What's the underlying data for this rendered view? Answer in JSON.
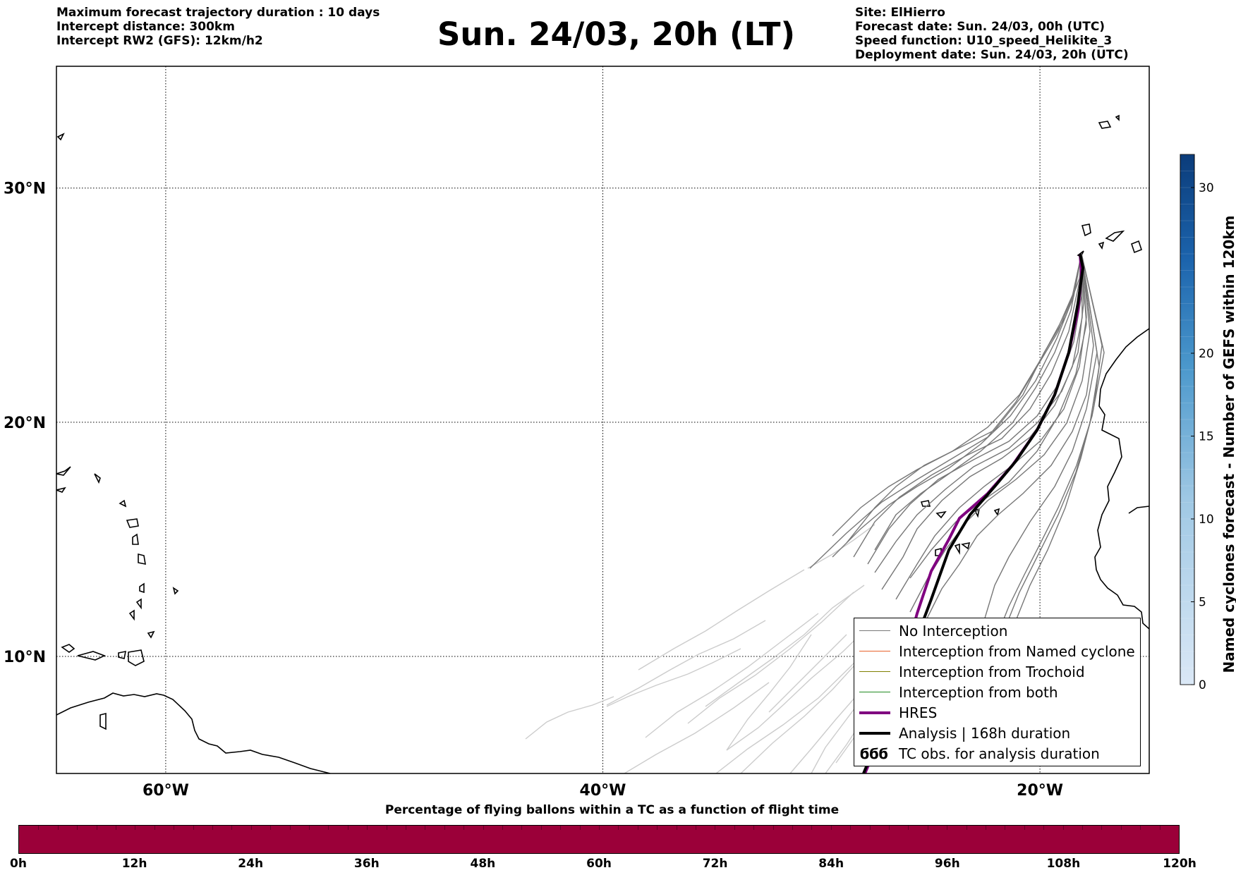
{
  "header": {
    "left_lines": [
      "Maximum forecast trajectory duration : 10 days",
      "Intercept distance: 300km",
      "Intercept RW2 (GFS):  12km/h2"
    ],
    "title": "Sun. 24/03, 20h (LT)",
    "right_lines": [
      "Site: ElHierro",
      "Forecast date: Sun. 24/03, 00h (UTC)",
      "Speed function: U10_speed_Helikite_3",
      "Deployment date: Sun. 24/03, 20h (UTC)"
    ]
  },
  "map": {
    "lon_range": [
      -65,
      -15
    ],
    "lat_range": [
      5,
      35.2
    ],
    "lon_ticks": [
      {
        "value": -60,
        "label": "60°W"
      },
      {
        "value": -40,
        "label": "40°W"
      },
      {
        "value": -20,
        "label": "20°W"
      }
    ],
    "lat_ticks": [
      {
        "value": 30,
        "label": "30°N"
      },
      {
        "value": 20,
        "label": "20°N"
      },
      {
        "value": 10,
        "label": "10°N"
      }
    ],
    "gridlines": true,
    "colors": {
      "no_interception": "#777777",
      "no_interception_late": "#cccccc",
      "named_cyclone": "#e8622c",
      "trochoid": "#808000",
      "both": "#228b22",
      "hres": "#800080",
      "analysis": "#000000"
    }
  },
  "legend": {
    "position": "lower-right",
    "items": [
      {
        "label": "No Interception",
        "color": "#777777",
        "width": 1
      },
      {
        "label": "Interception from Named cyclone",
        "color": "#e8622c",
        "width": 1
      },
      {
        "label": "Interception from Trochoid",
        "color": "#808000",
        "width": 1
      },
      {
        "label": "Interception from both",
        "color": "#228b22",
        "width": 1
      },
      {
        "label": "HRES",
        "color": "#800080",
        "width": 4
      },
      {
        "label": "Analysis | 168h duration",
        "color": "#000000",
        "width": 4
      },
      {
        "label": "TC obs. for analysis duration",
        "symbol": "ϭϭϭ"
      }
    ]
  },
  "colorbar_right": {
    "title": "Named cyclones forecast - Number of GEFS within 120km",
    "min": 0,
    "max": 32,
    "ticks": [
      {
        "value": 0,
        "label": "0"
      },
      {
        "value": 5,
        "label": "5"
      },
      {
        "value": 10,
        "label": "10"
      },
      {
        "value": 15,
        "label": "15"
      },
      {
        "value": 20,
        "label": "20"
      },
      {
        "value": 30,
        "label": "30"
      }
    ]
  },
  "colorbar_bottom": {
    "title": "Percentage of flying ballons within a TC as a function of flight time",
    "color": "#9b0039",
    "ticks": [
      "0h",
      "12h",
      "24h",
      "36h",
      "48h",
      "60h",
      "72h",
      "84h",
      "96h",
      "108h",
      "120h"
    ]
  }
}
